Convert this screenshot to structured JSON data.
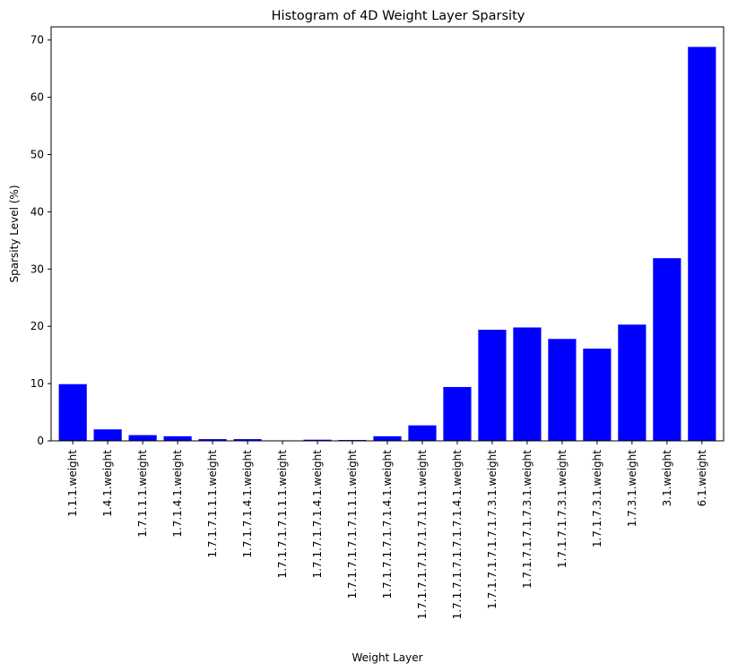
{
  "chart_data": {
    "type": "bar",
    "title": "Histogram of 4D Weight Layer Sparsity",
    "xlabel": "Weight Layer",
    "ylabel": "Sparsity Level (%)",
    "ylim": [
      0,
      72.3
    ],
    "yticks": [
      0,
      10,
      20,
      30,
      40,
      50,
      60,
      70
    ],
    "bar_color": "#0000ff",
    "grid": false,
    "categories": [
      "1.1.1.weight",
      "1.4.1.weight",
      "1.7.1.1.1.weight",
      "1.7.1.4.1.weight",
      "1.7.1.7.1.1.1.weight",
      "1.7.1.7.1.4.1.weight",
      "1.7.1.7.1.7.1.1.1.weight",
      "1.7.1.7.1.7.1.4.1.weight",
      "1.7.1.7.1.7.1.7.1.1.1.weight",
      "1.7.1.7.1.7.1.7.1.4.1.weight",
      "1.7.1.7.1.7.1.7.1.7.1.1.1.weight",
      "1.7.1.7.1.7.1.7.1.7.1.4.1.weight",
      "1.7.1.7.1.7.1.7.1.7.3.1.weight",
      "1.7.1.7.1.7.1.7.3.1.weight",
      "1.7.1.7.1.7.3.1.weight",
      "1.7.1.7.3.1.weight",
      "1.7.3.1.weight",
      "3.1.weight",
      "6.1.weight"
    ],
    "values": [
      9.9,
      2.0,
      1.0,
      0.8,
      0.3,
      0.3,
      0.05,
      0.2,
      0.15,
      0.8,
      2.7,
      9.4,
      19.4,
      19.8,
      17.8,
      16.1,
      20.3,
      31.9,
      68.8
    ]
  }
}
